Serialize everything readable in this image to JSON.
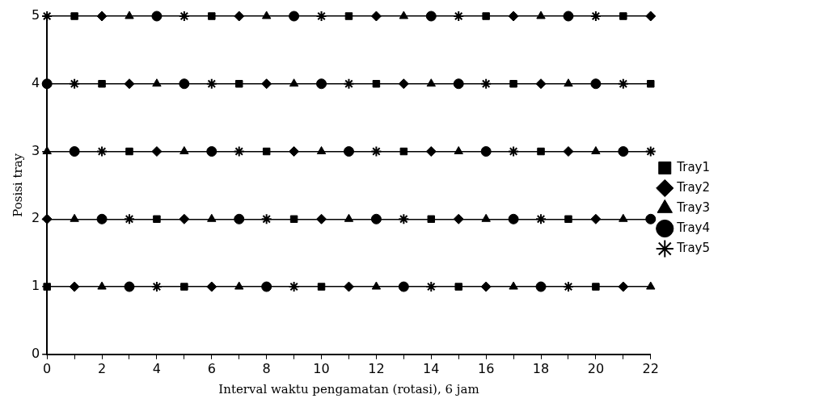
{
  "chart_data": {
    "type": "scatter",
    "xlabel": "Interval waktu pengamatan (rotasi), 6 jam",
    "ylabel": "Posisi tray",
    "x": [
      0,
      1,
      2,
      3,
      4,
      5,
      6,
      7,
      8,
      9,
      10,
      11,
      12,
      13,
      14,
      15,
      16,
      17,
      18,
      19,
      20,
      21,
      22
    ],
    "series": [
      {
        "name": "Tray1",
        "color": "#000000",
        "marker": "square",
        "values": [
          1,
          5,
          4,
          3,
          2,
          1,
          5,
          4,
          3,
          2,
          1,
          5,
          4,
          3,
          2,
          1,
          5,
          4,
          3,
          2,
          1,
          5,
          4
        ]
      },
      {
        "name": "Tray2",
        "color": "#000000",
        "marker": "diamond",
        "values": [
          2,
          1,
          5,
          4,
          3,
          2,
          1,
          5,
          4,
          3,
          2,
          1,
          5,
          4,
          3,
          2,
          1,
          5,
          4,
          3,
          2,
          1,
          5
        ]
      },
      {
        "name": "Tray3",
        "color": "#000000",
        "marker": "triangle",
        "values": [
          3,
          2,
          1,
          5,
          4,
          3,
          2,
          1,
          5,
          4,
          3,
          2,
          1,
          5,
          4,
          3,
          2,
          1,
          5,
          4,
          3,
          2,
          1
        ]
      },
      {
        "name": "Tray4",
        "color": "#000000",
        "marker": "circle",
        "values": [
          4,
          3,
          2,
          1,
          5,
          4,
          3,
          2,
          1,
          5,
          4,
          3,
          2,
          1,
          5,
          4,
          3,
          2,
          1,
          5,
          4,
          3,
          2
        ]
      },
      {
        "name": "Tray5",
        "color": "#000000",
        "marker": "cross",
        "values": [
          5,
          4,
          3,
          2,
          1,
          5,
          4,
          3,
          2,
          1,
          5,
          4,
          3,
          2,
          1,
          5,
          4,
          3,
          2,
          1,
          5,
          4,
          3
        ]
      }
    ],
    "xlim": [
      0,
      22
    ],
    "xticks": [
      0,
      {
        "value": 1,
        "label": null
      },
      2,
      {
        "value": 3,
        "label": null
      },
      4,
      {
        "value": 5,
        "label": null
      },
      6,
      {
        "value": 7,
        "label": null
      },
      8,
      {
        "value": 9,
        "label": null
      },
      10,
      {
        "value": 11,
        "label": null
      },
      12,
      {
        "value": 13,
        "label": null
      },
      14,
      {
        "value": 15,
        "label": null
      },
      16,
      {
        "value": 17,
        "label": null
      },
      18,
      {
        "value": 19,
        "label": null
      },
      20,
      {
        "value": 21,
        "label": null
      },
      22
    ],
    "ylim": [
      0,
      5
    ],
    "yticks": [
      0,
      1,
      2,
      3,
      4,
      5
    ],
    "grid": "y",
    "legend": "right"
  }
}
